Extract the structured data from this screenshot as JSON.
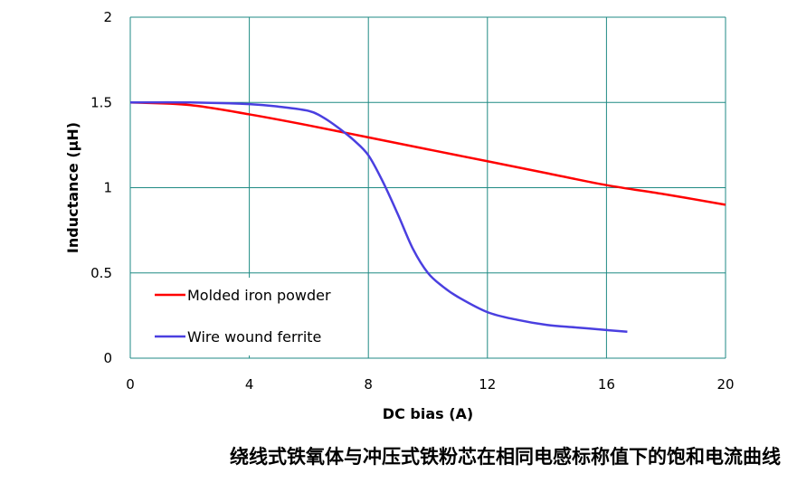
{
  "chart_data": {
    "type": "line",
    "xlabel": "DC bias (A)",
    "ylabel": "Inductance (µH)",
    "xlim": [
      0,
      20
    ],
    "ylim": [
      0,
      2
    ],
    "x_ticks": [
      "0",
      "4",
      "8",
      "12",
      "16",
      "20"
    ],
    "y_ticks": [
      "0",
      "0.5",
      "1",
      "1.5",
      "2"
    ],
    "grid": true,
    "legend_position": "bottom-left",
    "series": [
      {
        "name": "Molded iron powder",
        "color": "#ff0000",
        "x": [
          0,
          2,
          4,
          6,
          8,
          10,
          12,
          14,
          16,
          18,
          20
        ],
        "y": [
          1.5,
          1.485,
          1.43,
          1.365,
          1.295,
          1.225,
          1.155,
          1.085,
          1.015,
          0.96,
          0.9
        ]
      },
      {
        "name": "Wire wound ferrite",
        "color": "#4a3fe0",
        "x": [
          0,
          2,
          4,
          5,
          6,
          6.5,
          7,
          7.5,
          8,
          8.5,
          9,
          9.5,
          10,
          10.5,
          11,
          12,
          13,
          14,
          15,
          16,
          16.7
        ],
        "y": [
          1.5,
          1.5,
          1.49,
          1.475,
          1.45,
          1.41,
          1.35,
          1.28,
          1.19,
          1.03,
          0.84,
          0.64,
          0.5,
          0.42,
          0.36,
          0.27,
          0.225,
          0.195,
          0.18,
          0.165,
          0.155
        ]
      }
    ]
  },
  "caption": "绕线式铁氧体与冲压式铁粉芯在相同电感标称值下的饱和电流曲线"
}
